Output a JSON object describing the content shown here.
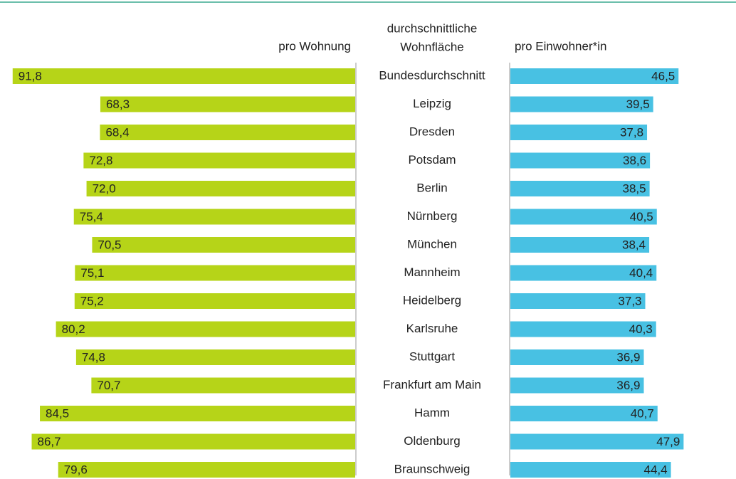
{
  "chart_data": {
    "type": "butterfly-bar",
    "title_lines": [
      "durchschnittliche",
      "Wohnfläche"
    ],
    "categories": [
      "Bundesdurchschnitt",
      "Leipzig",
      "Dresden",
      "Potsdam",
      "Berlin",
      "Nürnberg",
      "München",
      "Mannheim",
      "Heidelberg",
      "Karlsruhe",
      "Stuttgart",
      "Frankfurt am Main",
      "Hamm",
      "Oldenburg",
      "Braunschweig"
    ],
    "series": [
      {
        "name": "pro Wohnung",
        "color": "#b6d418",
        "xlim": [
          0,
          95
        ],
        "values": [
          91.8,
          68.3,
          68.4,
          72.8,
          72.0,
          75.4,
          70.5,
          75.1,
          75.2,
          80.2,
          74.8,
          70.7,
          84.5,
          86.7,
          79.6
        ],
        "value_labels": [
          "91,8",
          "68,3",
          "68,4",
          "72,8",
          "72,0",
          "75,4",
          "70,5",
          "75,1",
          "75,2",
          "80,2",
          "74,8",
          "70,7",
          "84,5",
          "86,7",
          "79,6"
        ]
      },
      {
        "name": "pro Einwohner*in",
        "color": "#48c1e3",
        "xlim": [
          0,
          62
        ],
        "values": [
          46.5,
          39.5,
          37.8,
          38.6,
          38.5,
          40.5,
          38.4,
          40.4,
          37.3,
          40.3,
          36.9,
          36.9,
          40.7,
          47.9,
          44.4
        ],
        "value_labels": [
          "46,5",
          "39,5",
          "37,8",
          "38,6",
          "38,5",
          "40,5",
          "38,4",
          "40,4",
          "37,3",
          "40,3",
          "36,9",
          "36,9",
          "40,7",
          "47,9",
          "44,4"
        ]
      }
    ]
  }
}
